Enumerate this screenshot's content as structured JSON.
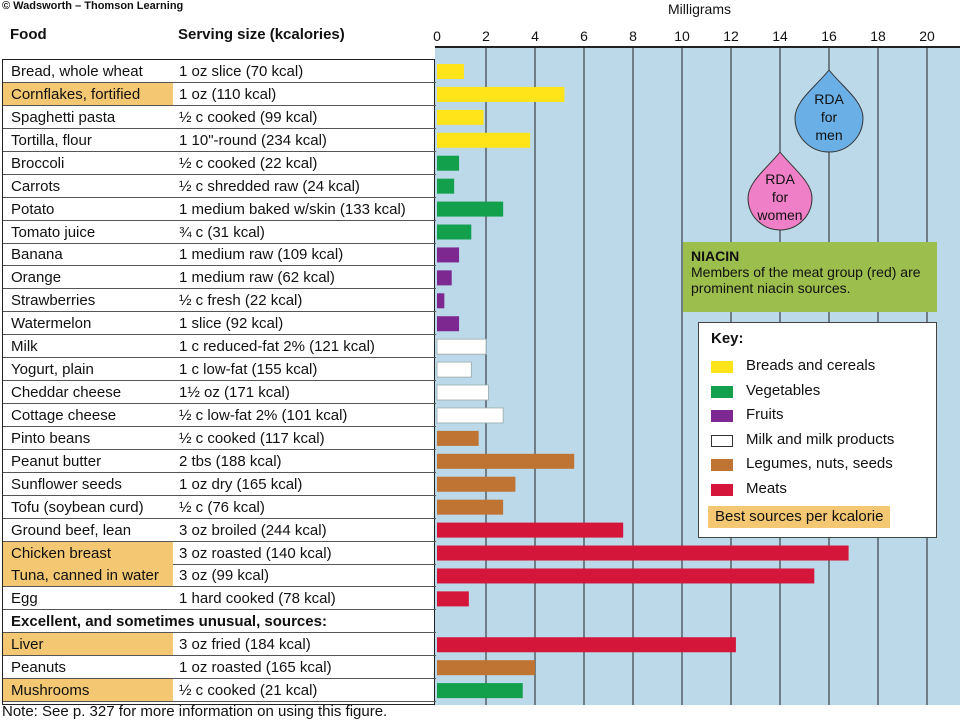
{
  "copyright": "© Wadsworth – Thomson Learning",
  "headers": {
    "food": "Food",
    "serving": "Serving size (kcalories)"
  },
  "section_label": "Excellent, and sometimes unusual, sources:",
  "note": "Note: See p. 327 for more information on using this figure.",
  "colors": {
    "breads": "#ffe419",
    "vegetables": "#12a04c",
    "fruits": "#7c2890",
    "milk": "#ffffff",
    "legumes": "#bf7434",
    "meats": "#d4163a",
    "highlight": "#f4c872",
    "background": "#bcd9e9",
    "gridline": "#222222",
    "rda_men": "#6ab0e6",
    "rda_women": "#ef7fc7",
    "niacin_box": "#9cbe4d"
  },
  "rows": [
    {
      "food": "Bread, whole wheat",
      "serving": "1 oz slice (70 kcal)",
      "group": "breads",
      "highlight": false
    },
    {
      "food": "Cornflakes, fortified",
      "serving": "1 oz (110 kcal)",
      "group": "breads",
      "highlight": true
    },
    {
      "food": "Spaghetti pasta",
      "serving": "½ c cooked (99 kcal)",
      "group": "breads",
      "highlight": false
    },
    {
      "food": "Tortilla, flour",
      "serving": "1 10\"-round (234 kcal)",
      "group": "breads",
      "highlight": false
    },
    {
      "food": "Broccoli",
      "serving": "½ c cooked (22 kcal)",
      "group": "vegetables",
      "highlight": false
    },
    {
      "food": "Carrots",
      "serving": "½ c shredded raw (24 kcal)",
      "group": "vegetables",
      "highlight": false
    },
    {
      "food": "Potato",
      "serving": "1 medium baked w/skin (133 kcal)",
      "group": "vegetables",
      "highlight": false
    },
    {
      "food": "Tomato juice",
      "serving": "¾ c (31 kcal)",
      "group": "vegetables",
      "highlight": false
    },
    {
      "food": "Banana",
      "serving": "1 medium raw (109 kcal)",
      "group": "fruits",
      "highlight": false
    },
    {
      "food": "Orange",
      "serving": "1 medium raw (62 kcal)",
      "group": "fruits",
      "highlight": false
    },
    {
      "food": "Strawberries",
      "serving": "½ c fresh (22 kcal)",
      "group": "fruits",
      "highlight": false
    },
    {
      "food": "Watermelon",
      "serving": "1 slice (92 kcal)",
      "group": "fruits",
      "highlight": false
    },
    {
      "food": "Milk",
      "serving": "1 c reduced-fat 2% (121 kcal)",
      "group": "milk",
      "highlight": false
    },
    {
      "food": "Yogurt, plain",
      "serving": "1 c low-fat (155 kcal)",
      "group": "milk",
      "highlight": false
    },
    {
      "food": "Cheddar cheese",
      "serving": "1½ oz (171 kcal)",
      "group": "milk",
      "highlight": false
    },
    {
      "food": "Cottage cheese",
      "serving": "½ c low-fat 2% (101 kcal)",
      "group": "milk",
      "highlight": false
    },
    {
      "food": "Pinto beans",
      "serving": "½ c cooked (117 kcal)",
      "group": "legumes",
      "highlight": false
    },
    {
      "food": "Peanut butter",
      "serving": "2 tbs (188 kcal)",
      "group": "legumes",
      "highlight": false
    },
    {
      "food": "Sunflower seeds",
      "serving": "1 oz dry (165 kcal)",
      "group": "legumes",
      "highlight": false
    },
    {
      "food": "Tofu (soybean curd)",
      "serving": "½ c (76 kcal)",
      "group": "legumes",
      "highlight": false
    },
    {
      "food": "Ground beef, lean",
      "serving": "3 oz broiled (244 kcal)",
      "group": "meats",
      "highlight": false
    },
    {
      "food": "Chicken breast",
      "serving": "3 oz roasted (140 kcal)",
      "group": "meats",
      "highlight": true
    },
    {
      "food": "Tuna, canned in water",
      "serving": "3 oz (99 kcal)",
      "group": "meats",
      "highlight": true
    },
    {
      "food": "Egg",
      "serving": "1 hard cooked (78 kcal)",
      "group": "meats",
      "highlight": false
    },
    {
      "section": true
    },
    {
      "food": "Liver",
      "serving": "3 oz fried (184 kcal)",
      "group": "meats",
      "highlight": true
    },
    {
      "food": "Peanuts",
      "serving": "1 oz roasted (165 kcal)",
      "group": "legumes",
      "highlight": false
    },
    {
      "food": "Mushrooms",
      "serving": "½ c cooked (21 kcal)",
      "group": "vegetables",
      "highlight": true
    }
  ],
  "chart_data": {
    "type": "bar",
    "orientation": "horizontal",
    "xlabel": "Milligrams",
    "xlim": [
      0,
      21
    ],
    "xticks": [
      "0",
      "2",
      "4",
      "6",
      "8",
      "10",
      "12",
      "14",
      "16",
      "18",
      "20"
    ],
    "grid": true,
    "values": [
      1.1,
      5.2,
      1.9,
      3.8,
      0.9,
      0.7,
      2.7,
      1.4,
      0.9,
      0.6,
      0.3,
      0.9,
      2.0,
      1.4,
      2.1,
      2.7,
      1.7,
      5.6,
      3.2,
      2.7,
      7.6,
      16.8,
      15.4,
      1.3,
      null,
      12.2,
      4.0,
      3.5
    ],
    "rda": [
      {
        "label": [
          "RDA",
          "for",
          "men"
        ],
        "value": 16,
        "group": "men"
      },
      {
        "label": [
          "RDA",
          "for",
          "women"
        ],
        "value": 14,
        "group": "women"
      }
    ],
    "niacin": {
      "title": "NIACIN",
      "text": "Members of the meat group (red) are prominent niacin sources."
    },
    "key": {
      "title": "Key:",
      "items": [
        {
          "label": "Breads and cereals",
          "group": "breads"
        },
        {
          "label": "Vegetables",
          "group": "vegetables"
        },
        {
          "label": "Fruits",
          "group": "fruits"
        },
        {
          "label": "Milk and milk products",
          "group": "milk"
        },
        {
          "label": "Legumes, nuts, seeds",
          "group": "legumes"
        },
        {
          "label": "Meats",
          "group": "meats"
        }
      ],
      "best_sources": "Best sources per kcalorie"
    }
  }
}
